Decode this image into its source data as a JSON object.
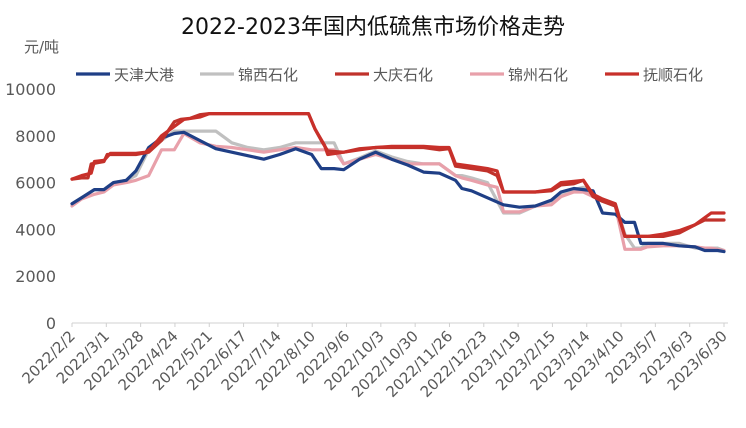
{
  "chart_data": {
    "type": "line",
    "title": "2022-2023年国内低硫焦市场价格走势",
    "ylabel": "元/吨",
    "xlabel": "",
    "ylim": [
      0,
      10000
    ],
    "yticks": [
      0,
      2000,
      4000,
      6000,
      8000,
      10000
    ],
    "grid": false,
    "legend_position": "top",
    "x_tick_labels": [
      "2022/2/2",
      "2022/3/1",
      "2022/3/28",
      "2022/4/24",
      "2022/5/21",
      "2022/6/17",
      "2022/7/14",
      "2022/8/10",
      "2022/9/6",
      "2022/10/3",
      "2022/10/30",
      "2022/11/26",
      "2022/12/23",
      "2023/1/19",
      "2023/2/15",
      "2023/3/14",
      "2023/4/10",
      "2023/5/7",
      "2023/6/3",
      "2023/6/30"
    ],
    "series": [
      {
        "name": "天津大港",
        "color": "#1f3f86",
        "points": [
          [
            0,
            5100
          ],
          [
            0.3,
            5350
          ],
          [
            0.7,
            5700
          ],
          [
            1,
            5700
          ],
          [
            1.3,
            6000
          ],
          [
            1.7,
            6100
          ],
          [
            2,
            6500
          ],
          [
            2.4,
            7500
          ],
          [
            2.8,
            7900
          ],
          [
            3.2,
            8100
          ],
          [
            3.5,
            8150
          ],
          [
            4,
            7800
          ],
          [
            4.5,
            7450
          ],
          [
            5,
            7300
          ],
          [
            5.5,
            7150
          ],
          [
            6,
            7000
          ],
          [
            6.5,
            7200
          ],
          [
            7,
            7450
          ],
          [
            7.5,
            7200
          ],
          [
            7.8,
            6600
          ],
          [
            8.2,
            6600
          ],
          [
            8.5,
            6550
          ],
          [
            9,
            7000
          ],
          [
            9.5,
            7300
          ],
          [
            10,
            7000
          ],
          [
            10.5,
            6750
          ],
          [
            11,
            6450
          ],
          [
            11.5,
            6400
          ],
          [
            12,
            6100
          ],
          [
            12.2,
            5750
          ],
          [
            12.5,
            5650
          ],
          [
            13,
            5350
          ],
          [
            13.5,
            5050
          ],
          [
            14,
            4950
          ],
          [
            14.5,
            5000
          ],
          [
            15,
            5250
          ],
          [
            15.3,
            5600
          ],
          [
            15.7,
            5750
          ],
          [
            16,
            5700
          ],
          [
            16.3,
            5650
          ],
          [
            16.6,
            4700
          ],
          [
            17,
            4650
          ],
          [
            17.3,
            4300
          ],
          [
            17.6,
            4300
          ],
          [
            17.8,
            3400
          ],
          [
            18,
            3400
          ],
          [
            18.5,
            3400
          ],
          [
            19,
            3300
          ],
          [
            19.5,
            3250
          ],
          [
            19.8,
            3100
          ],
          [
            20,
            3100
          ],
          [
            20.2,
            3100
          ],
          [
            20.4,
            3050
          ]
        ]
      },
      {
        "name": "锦西石化",
        "color": "#c0c0c0",
        "points": [
          [
            0,
            5100
          ],
          [
            0.3,
            5350
          ],
          [
            0.7,
            5700
          ],
          [
            1,
            5700
          ],
          [
            1.3,
            6000
          ],
          [
            1.7,
            6100
          ],
          [
            2,
            6300
          ],
          [
            2.4,
            7400
          ],
          [
            2.8,
            7800
          ],
          [
            3.2,
            8200
          ],
          [
            3.5,
            8200
          ],
          [
            4,
            8200
          ],
          [
            4.5,
            8200
          ],
          [
            5,
            7700
          ],
          [
            5.5,
            7500
          ],
          [
            6,
            7400
          ],
          [
            6.5,
            7500
          ],
          [
            7,
            7700
          ],
          [
            7.5,
            7700
          ],
          [
            7.8,
            7700
          ],
          [
            8.2,
            7700
          ],
          [
            8.5,
            6800
          ],
          [
            9,
            7050
          ],
          [
            9.5,
            7350
          ],
          [
            10,
            7100
          ],
          [
            10.5,
            6900
          ],
          [
            11,
            6800
          ],
          [
            11.5,
            6800
          ],
          [
            12,
            6300
          ],
          [
            12.2,
            6300
          ],
          [
            12.5,
            6200
          ],
          [
            13,
            6000
          ],
          [
            13.5,
            4700
          ],
          [
            14,
            4700
          ],
          [
            14.5,
            5000
          ],
          [
            15,
            5200
          ],
          [
            15.3,
            5500
          ],
          [
            15.7,
            5700
          ],
          [
            16,
            5800
          ],
          [
            16.3,
            5500
          ],
          [
            16.6,
            5300
          ],
          [
            17,
            5100
          ],
          [
            17.3,
            3800
          ],
          [
            17.6,
            3200
          ],
          [
            17.8,
            3200
          ],
          [
            18,
            3400
          ],
          [
            18.5,
            3400
          ],
          [
            19,
            3400
          ],
          [
            19.5,
            3200
          ],
          [
            19.8,
            3200
          ],
          [
            20,
            3200
          ],
          [
            20.2,
            3200
          ],
          [
            20.4,
            3100
          ]
        ]
      },
      {
        "name": "大庆石化",
        "color": "#c0322b",
        "points": [
          [
            0,
            6150
          ],
          [
            0.3,
            6200
          ],
          [
            0.5,
            6200
          ],
          [
            0.6,
            6800
          ],
          [
            0.8,
            6850
          ],
          [
            1,
            6900
          ],
          [
            1.1,
            7200
          ],
          [
            1.5,
            7200
          ],
          [
            2,
            7200
          ],
          [
            2.4,
            7300
          ],
          [
            2.8,
            7800
          ],
          [
            3.2,
            8600
          ],
          [
            3.4,
            8700
          ],
          [
            3.7,
            8750
          ],
          [
            4,
            8900
          ],
          [
            4.3,
            8950
          ],
          [
            5,
            8950
          ],
          [
            6,
            8950
          ],
          [
            7,
            8950
          ],
          [
            7.4,
            8950
          ],
          [
            7.6,
            8300
          ],
          [
            7.8,
            7800
          ],
          [
            8,
            7350
          ],
          [
            8.5,
            7300
          ],
          [
            9,
            7450
          ],
          [
            9.5,
            7500
          ],
          [
            10,
            7500
          ],
          [
            10.5,
            7500
          ],
          [
            11,
            7500
          ],
          [
            11.5,
            7400
          ],
          [
            11.8,
            7450
          ],
          [
            12,
            6700
          ],
          [
            12.5,
            6600
          ],
          [
            13,
            6500
          ],
          [
            13.3,
            6300
          ],
          [
            13.5,
            5600
          ],
          [
            14,
            5600
          ],
          [
            14.5,
            5600
          ],
          [
            15,
            5650
          ],
          [
            15.3,
            5900
          ],
          [
            15.7,
            5950
          ],
          [
            16,
            6100
          ],
          [
            16.3,
            5400
          ],
          [
            16.6,
            5200
          ],
          [
            17,
            5000
          ],
          [
            17.3,
            3700
          ],
          [
            17.6,
            3700
          ],
          [
            17.8,
            3700
          ],
          [
            18,
            3700
          ],
          [
            18.5,
            3700
          ],
          [
            19,
            3850
          ],
          [
            19.5,
            4200
          ],
          [
            19.8,
            4400
          ],
          [
            20,
            4400
          ],
          [
            20.2,
            4400
          ],
          [
            20.4,
            4400
          ]
        ]
      },
      {
        "name": "锦州石化",
        "color": "#e8a0aa",
        "points": [
          [
            0,
            5000
          ],
          [
            0.3,
            5300
          ],
          [
            0.7,
            5500
          ],
          [
            1,
            5600
          ],
          [
            1.3,
            5900
          ],
          [
            1.7,
            6000
          ],
          [
            2,
            6100
          ],
          [
            2.4,
            6300
          ],
          [
            2.8,
            7400
          ],
          [
            3.2,
            7400
          ],
          [
            3.5,
            8100
          ],
          [
            4,
            7700
          ],
          [
            4.5,
            7550
          ],
          [
            5,
            7500
          ],
          [
            5.5,
            7400
          ],
          [
            6,
            7300
          ],
          [
            6.5,
            7400
          ],
          [
            7,
            7500
          ],
          [
            7.5,
            7400
          ],
          [
            7.8,
            7400
          ],
          [
            8.2,
            7400
          ],
          [
            8.5,
            6800
          ],
          [
            9,
            7000
          ],
          [
            9.5,
            7200
          ],
          [
            10,
            7000
          ],
          [
            10.5,
            6800
          ],
          [
            11,
            6800
          ],
          [
            11.5,
            6800
          ],
          [
            12,
            6300
          ],
          [
            12.2,
            6200
          ],
          [
            12.5,
            6100
          ],
          [
            13,
            5900
          ],
          [
            13.3,
            5800
          ],
          [
            13.5,
            4750
          ],
          [
            14,
            4750
          ],
          [
            14.5,
            5000
          ],
          [
            15,
            5050
          ],
          [
            15.3,
            5400
          ],
          [
            15.7,
            5600
          ],
          [
            16,
            5600
          ],
          [
            16.3,
            5400
          ],
          [
            16.6,
            5200
          ],
          [
            17,
            5000
          ],
          [
            17.3,
            3150
          ],
          [
            17.6,
            3150
          ],
          [
            17.8,
            3150
          ],
          [
            18,
            3250
          ],
          [
            18.5,
            3300
          ],
          [
            19,
            3300
          ],
          [
            19.5,
            3250
          ],
          [
            19.8,
            3200
          ],
          [
            20,
            3200
          ],
          [
            20.2,
            3150
          ],
          [
            20.4,
            3100
          ]
        ]
      },
      {
        "name": "抚顺石化",
        "color": "#c8302a",
        "points": [
          [
            0,
            6150
          ],
          [
            0.3,
            6300
          ],
          [
            0.6,
            6400
          ],
          [
            0.7,
            6900
          ],
          [
            1,
            6950
          ],
          [
            1.2,
            7250
          ],
          [
            1.5,
            7250
          ],
          [
            2,
            7250
          ],
          [
            2.3,
            7300
          ],
          [
            2.5,
            7500
          ],
          [
            2.8,
            8000
          ],
          [
            3.2,
            8400
          ],
          [
            3.5,
            8700
          ],
          [
            4,
            8800
          ],
          [
            4.3,
            8950
          ],
          [
            5,
            8950
          ],
          [
            6,
            8950
          ],
          [
            7,
            8950
          ],
          [
            7.4,
            8950
          ],
          [
            7.6,
            8300
          ],
          [
            7.9,
            7600
          ],
          [
            8,
            7200
          ],
          [
            8.5,
            7300
          ],
          [
            9,
            7400
          ],
          [
            9.5,
            7500
          ],
          [
            10,
            7550
          ],
          [
            10.5,
            7550
          ],
          [
            11,
            7550
          ],
          [
            11.5,
            7500
          ],
          [
            11.8,
            7500
          ],
          [
            12,
            6800
          ],
          [
            12.5,
            6700
          ],
          [
            13,
            6600
          ],
          [
            13.3,
            6500
          ],
          [
            13.5,
            5600
          ],
          [
            14,
            5600
          ],
          [
            14.5,
            5600
          ],
          [
            15,
            5700
          ],
          [
            15.3,
            6000
          ],
          [
            15.7,
            6050
          ],
          [
            16,
            6100
          ],
          [
            16.3,
            5500
          ],
          [
            16.6,
            5300
          ],
          [
            17,
            5100
          ],
          [
            17.3,
            3700
          ],
          [
            17.6,
            3700
          ],
          [
            17.8,
            3700
          ],
          [
            18,
            3700
          ],
          [
            18.5,
            3800
          ],
          [
            19,
            3950
          ],
          [
            19.5,
            4200
          ],
          [
            19.8,
            4500
          ],
          [
            20,
            4700
          ],
          [
            20.2,
            4700
          ],
          [
            20.4,
            4700
          ]
        ]
      }
    ]
  }
}
